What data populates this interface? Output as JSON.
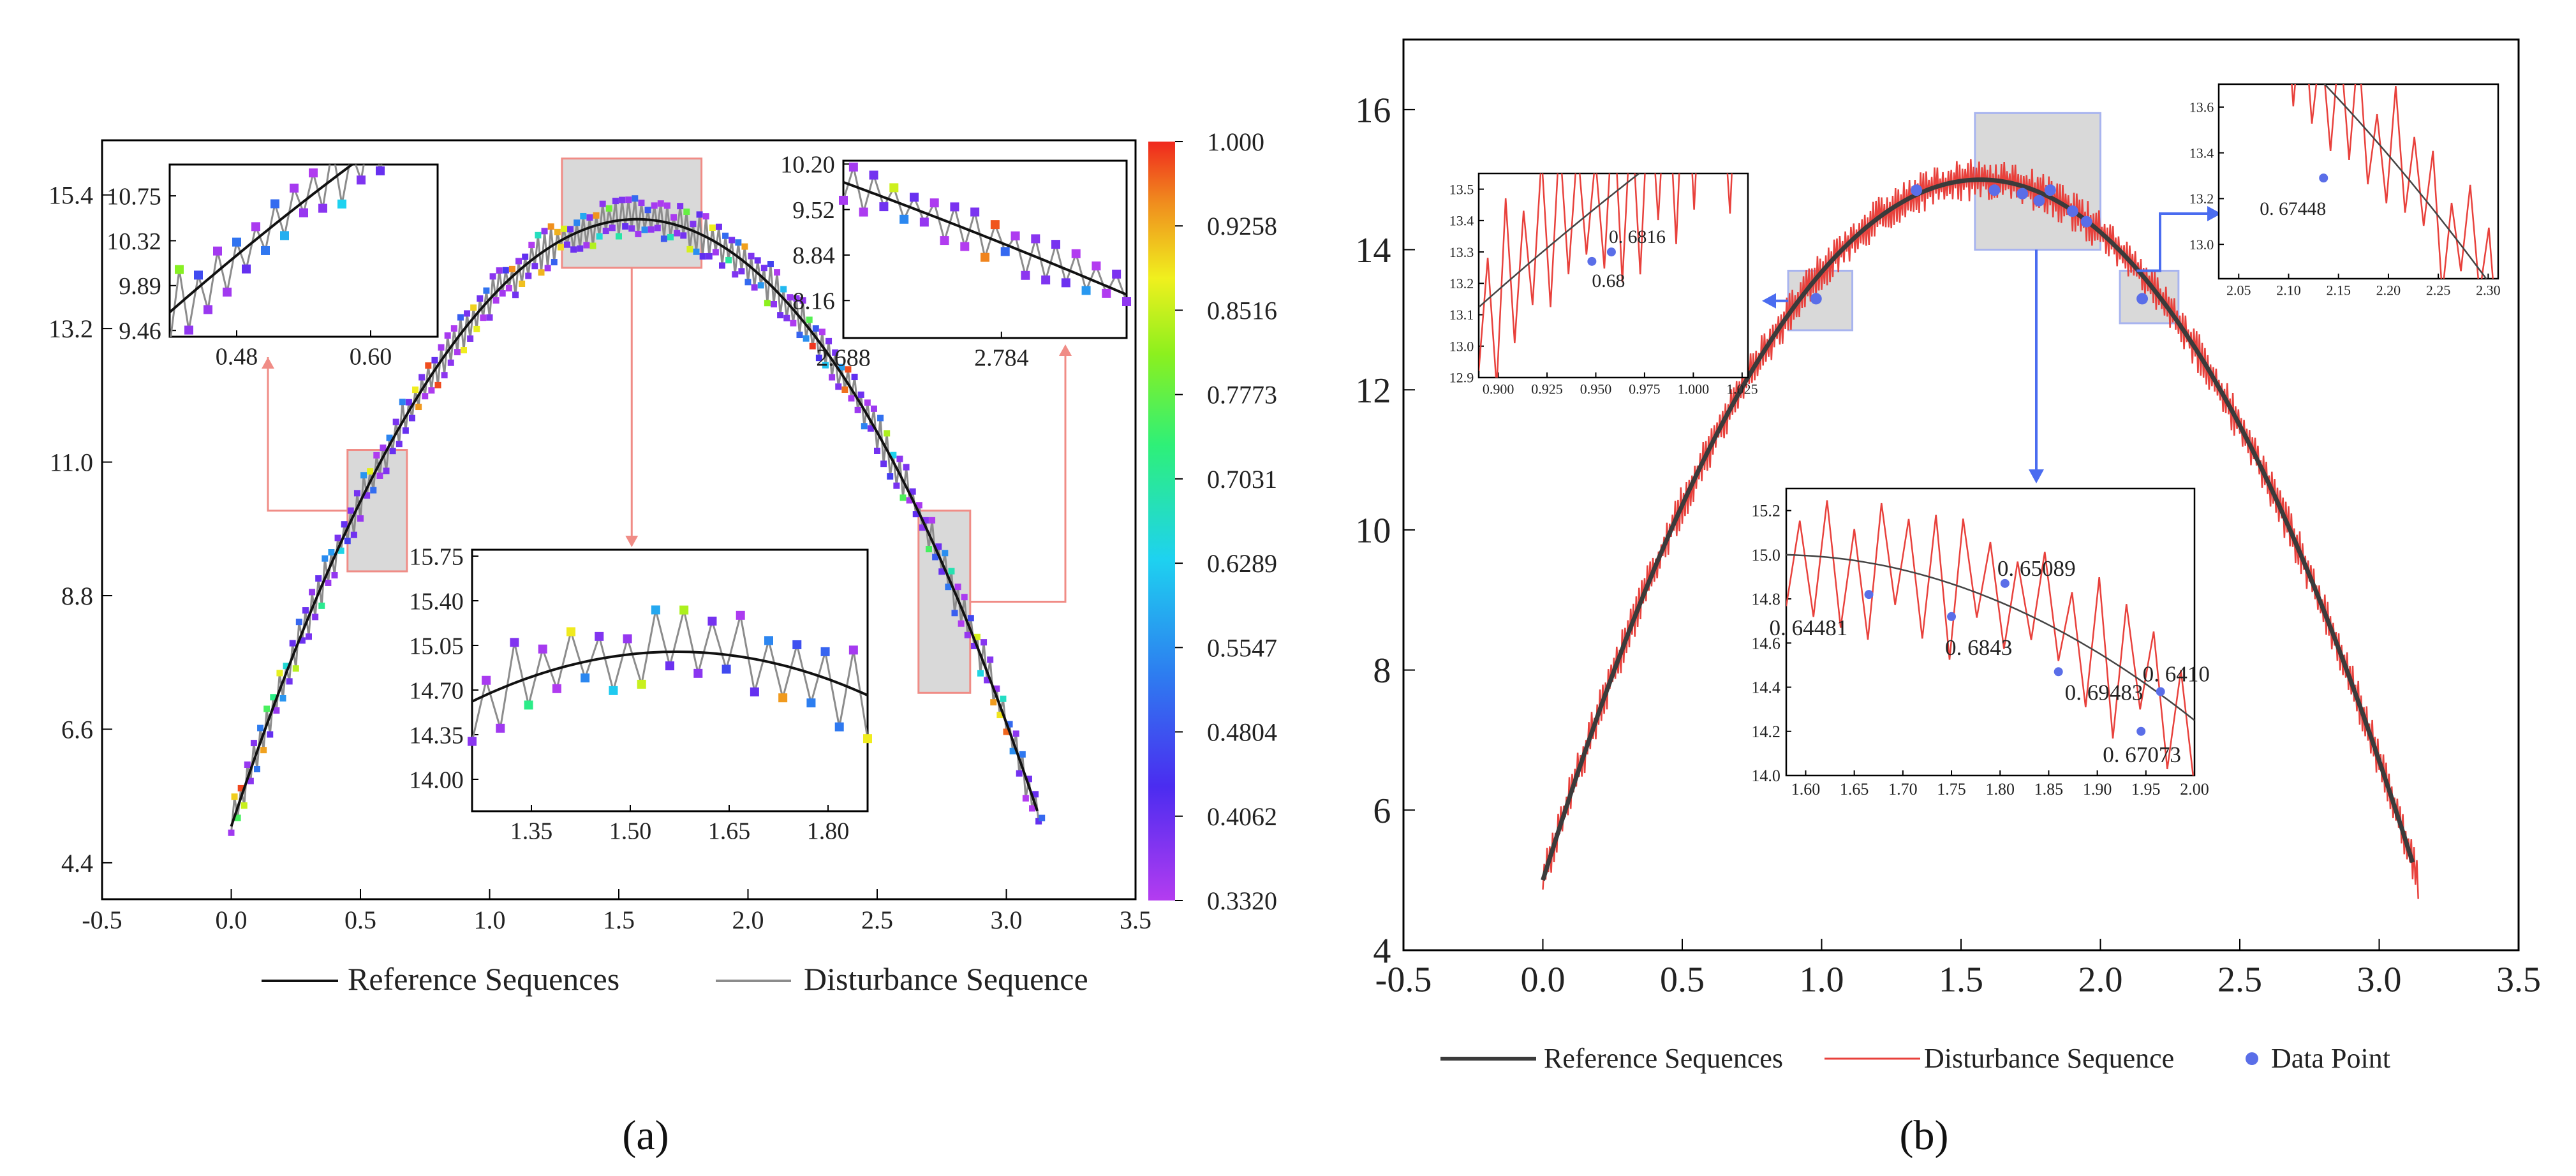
{
  "colorbar_ticks": [
    "1.000",
    "0.9258",
    "0.8516",
    "0.7773",
    "0.7031",
    "0.6289",
    "0.5547",
    "0.4804",
    "0.4062",
    "0.3320"
  ],
  "captions": {
    "a": "(a)",
    "b": "(b)"
  },
  "legend_a": [
    "Reference Sequences",
    "Disturbance Sequence"
  ],
  "legend_b": [
    "Reference Sequences",
    "Disturbance Sequence",
    "Data Point"
  ],
  "colors": {
    "reference": "#111111",
    "disturbance_a": "#8c8c8c",
    "disturbance_b": "#e8413c",
    "datapoint": "#5a6ee8",
    "highlight": "#f08c86",
    "arrow_b": "#4a6cf0",
    "box_fill": "#d9d9d9"
  },
  "chart_data": [
    {
      "panel": "a",
      "type": "line",
      "xlim": [
        -0.5,
        3.5
      ],
      "ylim": [
        3.8,
        16.3
      ],
      "xticks": [
        "-0.5",
        "0.0",
        "0.5",
        "1.0",
        "1.5",
        "2.0",
        "2.5",
        "3.0",
        "3.5"
      ],
      "yticks": [
        "4.4",
        "6.6",
        "8.8",
        "11.0",
        "13.2",
        "15.4"
      ],
      "series": [
        {
          "name": "Reference Sequences",
          "x_range": [
            0,
            3.14
          ],
          "peak": [
            1.57,
            15.0
          ],
          "start_y": 5.0,
          "end_y": 5.0
        },
        {
          "name": "Disturbance Sequence",
          "noise": 0.35,
          "marker_colormap": "rainbow"
        }
      ],
      "colorbar_range": [
        0.332,
        1.0
      ],
      "insets": [
        {
          "xticks": [
            "0.48",
            "0.60"
          ],
          "yticks": [
            "10.75",
            "10.32",
            "9.89",
            "9.46"
          ],
          "xlim": [
            0.42,
            0.66
          ],
          "ylim": [
            9.4,
            11.05
          ]
        },
        {
          "xticks": [
            "2.688",
            "2.784"
          ],
          "yticks": [
            "10.20",
            "9.52",
            "8.84",
            "8.16"
          ],
          "xlim": [
            2.688,
            2.86
          ],
          "ylim": [
            7.6,
            10.25
          ]
        },
        {
          "xticks": [
            "1.35",
            "1.50",
            "1.65",
            "1.80"
          ],
          "yticks": [
            "15.75",
            "15.40",
            "15.05",
            "14.70",
            "14.35",
            "14.00"
          ],
          "xlim": [
            1.26,
            1.86
          ],
          "ylim": [
            13.75,
            15.8
          ]
        }
      ]
    },
    {
      "panel": "b",
      "type": "line",
      "xlim": [
        -0.5,
        3.5
      ],
      "ylim": [
        4,
        17
      ],
      "xticks": [
        "-0.5",
        "0.0",
        "0.5",
        "1.0",
        "1.5",
        "2.0",
        "2.5",
        "3.0",
        "3.5"
      ],
      "yticks": [
        "4",
        "6",
        "8",
        "10",
        "12",
        "14",
        "16"
      ],
      "series": [
        {
          "name": "Reference Sequences",
          "x_range": [
            0,
            3.14
          ],
          "peak": [
            1.57,
            15.0
          ],
          "start_y": 5.0,
          "end_y": 5.0
        },
        {
          "name": "Disturbance Sequence",
          "noise": 0.3
        },
        {
          "name": "Data Point"
        }
      ],
      "insets": [
        {
          "xticks": [
            "0.900",
            "0.925",
            "0.950",
            "0.975",
            "1.000",
            "1.025"
          ],
          "yticks": [
            "13.5",
            "13.4",
            "13.3",
            "13.2",
            "13.1",
            "13.0",
            "12.9"
          ],
          "xlim": [
            0.89,
            1.028
          ],
          "ylim": [
            12.9,
            13.55
          ],
          "points": [
            {
              "x": 0.948,
              "y": 13.27,
              "label": "0.68"
            },
            {
              "x": 0.958,
              "y": 13.3,
              "label": "0. 6816"
            }
          ]
        },
        {
          "xticks": [
            "2.05",
            "2.10",
            "2.15",
            "2.20",
            "2.25",
            "2.30"
          ],
          "yticks": [
            "13.6",
            "13.4",
            "13.2",
            "13.0"
          ],
          "xlim": [
            2.03,
            2.31
          ],
          "ylim": [
            12.85,
            13.7
          ],
          "points": [
            {
              "x": 2.135,
              "y": 13.29,
              "label": "0. 67448"
            }
          ]
        },
        {
          "xticks": [
            "1.60",
            "1.65",
            "1.70",
            "1.75",
            "1.80",
            "1.85",
            "1.90",
            "1.95",
            "2.00"
          ],
          "yticks": [
            "15.2",
            "15.0",
            "14.8",
            "14.6",
            "14.4",
            "14.2",
            "14.0"
          ],
          "xlim": [
            1.58,
            2.0
          ],
          "ylim": [
            14.0,
            15.3
          ],
          "points": [
            {
              "x": 1.665,
              "y": 14.82,
              "label": "0. 64481"
            },
            {
              "x": 1.75,
              "y": 14.72,
              "label": "0. 6843"
            },
            {
              "x": 1.805,
              "y": 14.87,
              "label": "0. 65089"
            },
            {
              "x": 1.86,
              "y": 14.47,
              "label": "0. 69483"
            },
            {
              "x": 1.945,
              "y": 14.2,
              "label": "0. 67073"
            },
            {
              "x": 1.965,
              "y": 14.38,
              "label": "0. 6410"
            }
          ]
        }
      ]
    }
  ]
}
